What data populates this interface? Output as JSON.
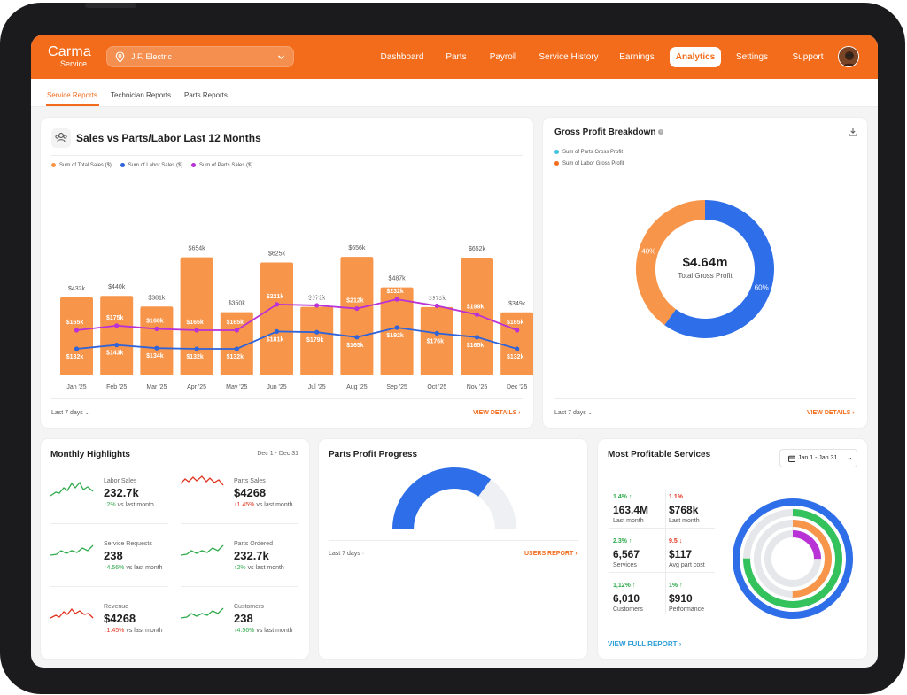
{
  "app": {
    "logo_line1": "Carma",
    "logo_line2": "Service",
    "avatar_icon": "user-avatar"
  },
  "location": {
    "name": "J.F. Electric",
    "icon": "location-pin-icon"
  },
  "nav": {
    "items": [
      "Dashboard",
      "Parts",
      "Payroll",
      "Service History",
      "Earnings",
      "Analytics",
      "Settings",
      "Support"
    ],
    "active": "Analytics"
  },
  "subtabs": {
    "items": [
      "Service Reports",
      "Technician Reports",
      "Parts Reports"
    ],
    "active": "Service Reports"
  },
  "sales_card": {
    "title": "Sales vs Parts/Labor Last 12 Months",
    "icon": "team-icon",
    "filter": "Last 7 days",
    "link": "VIEW DETAILS",
    "colors": {
      "total": "#f7954a",
      "labor": "#2e63d9",
      "parts": "#b832d6"
    }
  },
  "chart_data": [
    {
      "type": "bar",
      "categories": [
        "Jan '25",
        "Feb '25",
        "Mar '25",
        "Apr '25",
        "May '25",
        "Jun '25",
        "Jul '25",
        "Aug '25",
        "Sep '25",
        "Oct '25",
        "Nov '25",
        "Dec '25"
      ],
      "series": [
        {
          "name": "Sum of Total Sales ($)",
          "type": "bar",
          "values": [
            432,
            440,
            381,
            654,
            350,
            625,
            379,
            656,
            487,
            378,
            652,
            349
          ],
          "labels": [
            "$432k",
            "$440k",
            "$381k",
            "$654k",
            "$350k",
            "$625k",
            "$379k",
            "$656k",
            "$487k",
            "$378k",
            "$652k",
            "$349k"
          ]
        },
        {
          "name": "Sum of Labor Sales ($)",
          "type": "line",
          "values": [
            132,
            143,
            134,
            132,
            132,
            181,
            179,
            165,
            192,
            176,
            165,
            132
          ],
          "labels": [
            "$132k",
            "$143k",
            "$134k",
            "$132k",
            "$132k",
            "$181k",
            "$179k",
            "$165k",
            "$192k",
            "$176k",
            "$165k",
            "$132k"
          ]
        },
        {
          "name": "Sum of Parts Sales ($)",
          "type": "line",
          "values": [
            165,
            175,
            168,
            165,
            165,
            221,
            219,
            212,
            232,
            218,
            199,
            165
          ],
          "labels": [
            "$165k",
            "$175k",
            "$168k",
            "$165k",
            "$165k",
            "$221k",
            "$219k",
            "$212k",
            "$232k",
            "$218k",
            "$199k",
            "$165k"
          ]
        }
      ],
      "units": "thousands of dollars",
      "legend": "top-left",
      "grid": false
    },
    {
      "type": "pie",
      "title": "Gross Profit Breakdown",
      "center_value": "$4.64m",
      "center_label": "Total Gross Profit",
      "slices": [
        {
          "name": "Sum of Parts Gross Profit",
          "value": 60,
          "label": "60%",
          "color": "#2e6ee8"
        },
        {
          "name": "Sum of Labor Gross Profit",
          "value": 40,
          "label": "40%",
          "color": "#f7954a"
        }
      ],
      "legend_colors": {
        "Sum of Parts Gross Profit": "#3fc4e0",
        "Sum of Labor Gross Profit": "#f26c1c"
      },
      "legend": "top-left"
    }
  ],
  "gross_card": {
    "filter": "Last 7 days",
    "link": "VIEW DETAILS",
    "info_icon": "info-icon",
    "download_icon": "download-icon"
  },
  "highlights": {
    "title": "Monthly Highlights",
    "range": "Dec 1 - Dec 31",
    "items": [
      {
        "title": "Labor Sales",
        "value": "232.7k",
        "change": "2%",
        "trend": "up",
        "suffix": "vs last month"
      },
      {
        "title": "Parts Sales",
        "value": "$4268",
        "change": "1.45%",
        "trend": "down",
        "suffix": "vs last month"
      },
      {
        "title": "Service Requests",
        "value": "238",
        "change": "4.56%",
        "trend": "up",
        "suffix": "vs last month"
      },
      {
        "title": "Parts Ordered",
        "value": "232.7k",
        "change": "2%",
        "trend": "up",
        "suffix": "vs last month"
      },
      {
        "title": "Revenue",
        "value": "$4268",
        "change": "1.45%",
        "trend": "down",
        "suffix": "vs last month"
      },
      {
        "title": "Customers",
        "value": "238",
        "change": "4.56%",
        "trend": "up",
        "suffix": "vs last month"
      }
    ]
  },
  "parts_progress": {
    "title": "Parts Profit Progress",
    "progress": 0.7,
    "color": "#2e6ee8",
    "track": "#eef0f3",
    "filter": "Last 7 days",
    "link": "USERS REPORT"
  },
  "profitable": {
    "title": "Most Profitable Services",
    "date_range": "Jan 1 - Jan 31",
    "calendar_icon": "calendar-icon",
    "stats": [
      {
        "change": "1.4%",
        "trend": "up",
        "value": "163.4M",
        "label": "Last month"
      },
      {
        "change": "1.1%",
        "trend": "down",
        "value": "$768k",
        "label": "Last month"
      },
      {
        "change": "2.3%",
        "trend": "up",
        "value": "6,567",
        "label": "Services"
      },
      {
        "change": "9.5",
        "trend": "down",
        "value": "$117",
        "label": "Avg part cost"
      },
      {
        "change": "1,12%",
        "trend": "up",
        "value": "6,010",
        "label": "Customers"
      },
      {
        "change": "1%",
        "trend": "up",
        "value": "$910",
        "label": "Performance"
      }
    ],
    "rings": [
      {
        "color": "#2e6ee8",
        "value": 1.0
      },
      {
        "color": "#33c25b",
        "value": 0.75
      },
      {
        "color": "#f7954a",
        "value": 0.5
      },
      {
        "color": "#b832d6",
        "value": 0.25
      }
    ],
    "link": "VIEW FULL REPORT"
  }
}
